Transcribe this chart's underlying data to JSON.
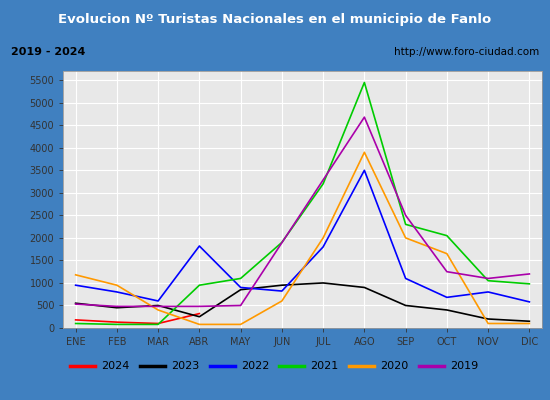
{
  "title": "Evolucion Nº Turistas Nacionales en el municipio de Fanlo",
  "subtitle_left": "2019 - 2024",
  "subtitle_right": "http://www.foro-ciudad.com",
  "months": [
    "ENE",
    "FEB",
    "MAR",
    "ABR",
    "MAY",
    "JUN",
    "JUL",
    "AGO",
    "SEP",
    "OCT",
    "NOV",
    "DIC"
  ],
  "series": {
    "2024": [
      180,
      130,
      100,
      320,
      null,
      null,
      null,
      null,
      null,
      null,
      null,
      null
    ],
    "2023": [
      550,
      450,
      500,
      250,
      850,
      950,
      1000,
      900,
      500,
      400,
      200,
      150
    ],
    "2022": [
      950,
      800,
      600,
      1820,
      900,
      820,
      1800,
      3500,
      1100,
      680,
      800,
      580
    ],
    "2021": [
      100,
      80,
      80,
      950,
      1100,
      1900,
      3200,
      5450,
      2300,
      2050,
      1050,
      980
    ],
    "2020": [
      1180,
      950,
      400,
      80,
      80,
      600,
      2000,
      3900,
      2000,
      1650,
      100,
      100
    ],
    "2019": [
      530,
      480,
      480,
      480,
      500,
      null,
      null,
      4680,
      2500,
      1250,
      1100,
      1200
    ]
  },
  "colors": {
    "2024": "#ff0000",
    "2023": "#000000",
    "2022": "#0000ff",
    "2021": "#00cc00",
    "2020": "#ff9900",
    "2019": "#aa00aa"
  },
  "ylim": [
    0,
    5700
  ],
  "yticks": [
    0,
    500,
    1000,
    1500,
    2000,
    2500,
    3000,
    3500,
    4000,
    4500,
    5000,
    5500
  ],
  "title_bg": "#4080c0",
  "title_color": "#ffffff",
  "subtitle_bg": "#f0f0f0",
  "plot_bg": "#e8e8e8",
  "grid_color": "#ffffff",
  "outer_bg": "#4080c0",
  "legend_years": [
    "2024",
    "2023",
    "2022",
    "2021",
    "2020",
    "2019"
  ]
}
